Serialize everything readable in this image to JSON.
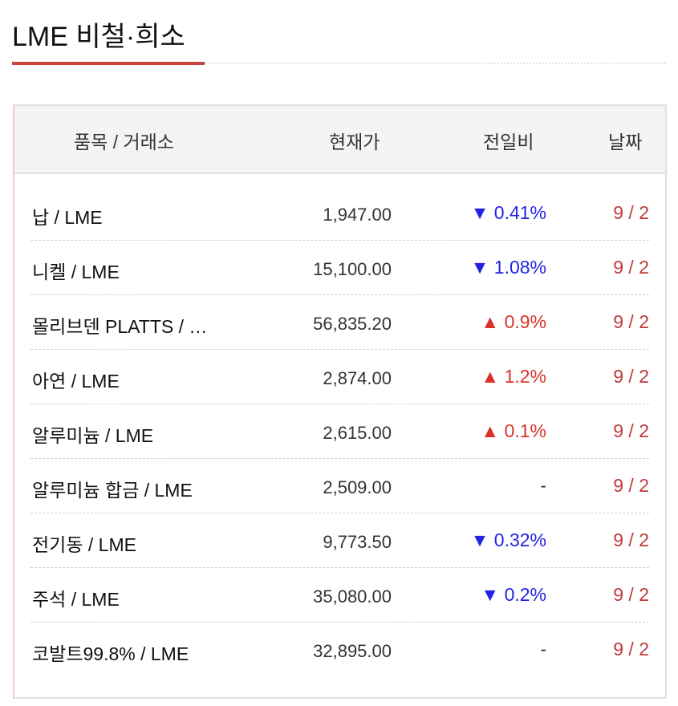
{
  "title": "LME 비철·희소",
  "headers": {
    "item": "품목 / 거래소",
    "price": "현재가",
    "change": "전일비",
    "date": "날짜"
  },
  "colors": {
    "accent": "#c8453d",
    "down": "#2323e6",
    "up": "#d8322a",
    "date": "#c0393b"
  },
  "rows": [
    {
      "name": "납 / LME",
      "price": "1,947.00",
      "change": "▼ 0.41%",
      "dir": "down",
      "date": "9 / 2"
    },
    {
      "name": "니켈 / LME",
      "price": "15,100.00",
      "change": "▼ 1.08%",
      "dir": "down",
      "date": "9 / 2"
    },
    {
      "name": "몰리브덴 PLATTS / …",
      "price": "56,835.20",
      "change": "▲ 0.9%",
      "dir": "up",
      "date": "9 / 2"
    },
    {
      "name": "아연 / LME",
      "price": "2,874.00",
      "change": "▲ 1.2%",
      "dir": "up",
      "date": "9 / 2"
    },
    {
      "name": "알루미늄 / LME",
      "price": "2,615.00",
      "change": "▲ 0.1%",
      "dir": "up",
      "date": "9 / 2"
    },
    {
      "name": "알루미늄 합금 / LME",
      "price": "2,509.00",
      "change": "-",
      "dir": "flat",
      "date": "9 / 2"
    },
    {
      "name": "전기동 / LME",
      "price": "9,773.50",
      "change": "▼ 0.32%",
      "dir": "down",
      "date": "9 / 2"
    },
    {
      "name": "주석 / LME",
      "price": "35,080.00",
      "change": "▼ 0.2%",
      "dir": "down",
      "date": "9 / 2"
    },
    {
      "name": "코발트99.8% / LME",
      "price": "32,895.00",
      "change": "-",
      "dir": "flat",
      "date": "9 / 2"
    }
  ]
}
